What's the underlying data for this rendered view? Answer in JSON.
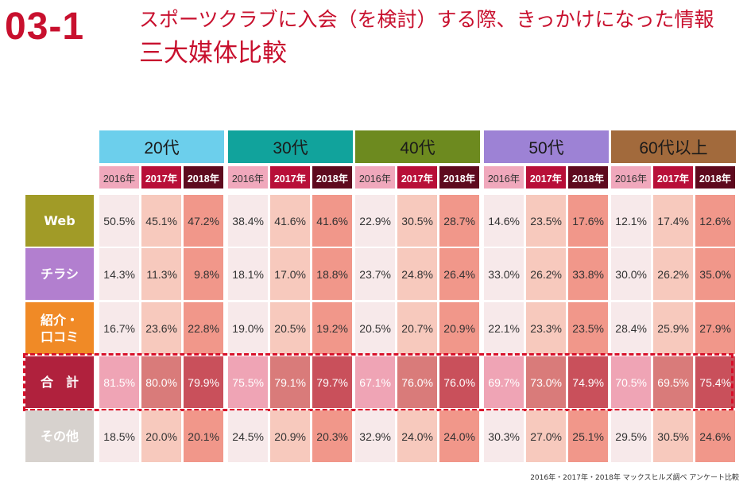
{
  "header": {
    "section_number": "03-1",
    "title_line1": "スポーツクラブに入会（を検討）する際、きっかけになった情報",
    "title_line2": "三大媒体比較"
  },
  "colors": {
    "accent": "#c8102e",
    "age_groups": [
      "#6ccfec",
      "#11a39c",
      "#6d8a1f",
      "#9d82d5",
      "#a26a3c"
    ],
    "year_2016_bg": "#f0a8bc",
    "year_2017_bg": "#b80f38",
    "year_2018_bg": "#5e0a1e",
    "row_labels": [
      "#a19b27",
      "#b27fcf",
      "#f08a26",
      "#b0213d",
      "#d7d2ce"
    ],
    "row_tints": [
      "#f7e9ea",
      "#f7c9bd",
      "#f1978a"
    ],
    "total_tints": [
      "#efa4b5",
      "#d97b7a",
      "#c9505b"
    ],
    "highlight_border": "#d8102a"
  },
  "chart_data": {
    "type": "table",
    "title": "三大媒体比較",
    "age_groups": [
      "20代",
      "30代",
      "40代",
      "50代",
      "60代以上"
    ],
    "years": [
      "2016年",
      "2017年",
      "2018年"
    ],
    "rows": [
      {
        "label": "Web",
        "values": [
          [
            "50.5%",
            "45.1%",
            "47.2%"
          ],
          [
            "38.4%",
            "41.6%",
            "41.6%"
          ],
          [
            "22.9%",
            "30.5%",
            "28.7%"
          ],
          [
            "14.6%",
            "23.5%",
            "17.6%"
          ],
          [
            "12.1%",
            "17.4%",
            "12.6%"
          ]
        ]
      },
      {
        "label": "チラシ",
        "values": [
          [
            "14.3%",
            "11.3%",
            "9.8%"
          ],
          [
            "18.1%",
            "17.0%",
            "18.8%"
          ],
          [
            "23.7%",
            "24.8%",
            "26.4%"
          ],
          [
            "33.0%",
            "26.2%",
            "33.8%"
          ],
          [
            "30.0%",
            "26.2%",
            "35.0%"
          ]
        ]
      },
      {
        "label": "紹介・\n口コミ",
        "values": [
          [
            "16.7%",
            "23.6%",
            "22.8%"
          ],
          [
            "19.0%",
            "20.5%",
            "19.2%"
          ],
          [
            "20.5%",
            "20.7%",
            "20.9%"
          ],
          [
            "22.1%",
            "23.3%",
            "23.5%"
          ],
          [
            "28.4%",
            "25.9%",
            "27.9%"
          ]
        ]
      },
      {
        "label": "合　計",
        "highlighted": true,
        "values": [
          [
            "81.5%",
            "80.0%",
            "79.9%"
          ],
          [
            "75.5%",
            "79.1%",
            "79.7%"
          ],
          [
            "67.1%",
            "76.0%",
            "76.0%"
          ],
          [
            "69.7%",
            "73.0%",
            "74.9%"
          ],
          [
            "70.5%",
            "69.5%",
            "75.4%"
          ]
        ]
      },
      {
        "label": "その他",
        "values": [
          [
            "18.5%",
            "20.0%",
            "20.1%"
          ],
          [
            "24.5%",
            "20.9%",
            "20.3%"
          ],
          [
            "32.9%",
            "24.0%",
            "24.0%"
          ],
          [
            "30.3%",
            "27.0%",
            "25.1%"
          ],
          [
            "29.5%",
            "30.5%",
            "24.6%"
          ]
        ]
      }
    ]
  },
  "source_note": "2016年・2017年・2018年 マックスヒルズ調べ アンケート比較"
}
